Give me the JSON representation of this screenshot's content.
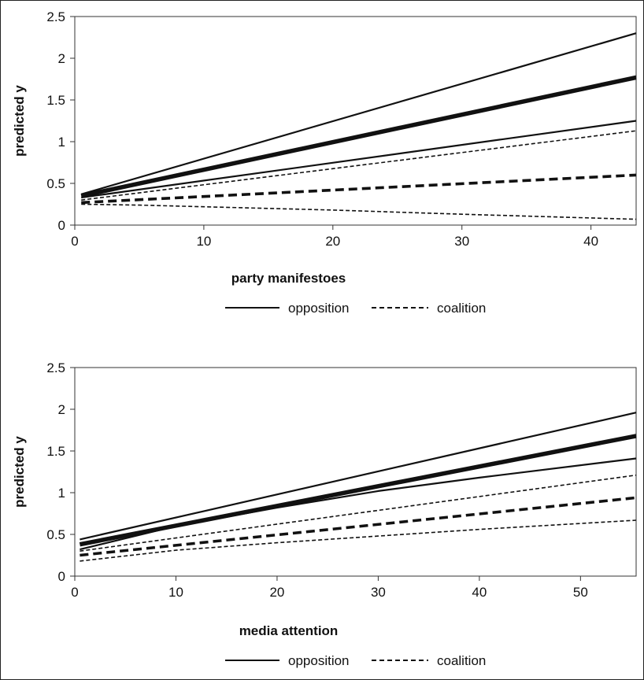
{
  "chart_data": [
    {
      "type": "line",
      "xlabel": "party manifestoes",
      "ylabel": "predicted y",
      "xlim": [
        0,
        43.5
      ],
      "ylim": [
        0,
        2.5
      ],
      "xticks": [
        0,
        10,
        20,
        30,
        40
      ],
      "xtick_labels": [
        "0",
        "10",
        "20",
        "30",
        "40"
      ],
      "yticks": [
        0,
        0.5,
        1,
        1.5,
        2,
        2.5
      ],
      "ytick_labels": [
        "0",
        "0.5",
        "1",
        "1.5",
        "2",
        "2.5"
      ],
      "legend": {
        "placement": "bottom",
        "entries": [
          "opposition",
          "coalition"
        ]
      },
      "series": [
        {
          "name": "opposition",
          "role": "estimate",
          "style": "solid",
          "x": [
            0.5,
            43.5
          ],
          "y": [
            0.35,
            1.77
          ]
        },
        {
          "name": "opposition",
          "role": "upper bound",
          "style": "solid",
          "x": [
            0.5,
            43.5
          ],
          "y": [
            0.37,
            2.3
          ]
        },
        {
          "name": "opposition",
          "role": "lower bound",
          "style": "solid",
          "x": [
            0.5,
            43.5
          ],
          "y": [
            0.33,
            1.25
          ]
        },
        {
          "name": "coalition",
          "role": "estimate",
          "style": "dashed",
          "x": [
            0.5,
            43.5
          ],
          "y": [
            0.27,
            0.6
          ]
        },
        {
          "name": "coalition",
          "role": "upper bound",
          "style": "dashed",
          "x": [
            0.5,
            43.5
          ],
          "y": [
            0.3,
            1.13
          ]
        },
        {
          "name": "coalition",
          "role": "lower bound",
          "style": "dashed",
          "x": [
            0.5,
            5,
            10,
            20,
            30,
            43.5
          ],
          "y": [
            0.25,
            0.24,
            0.22,
            0.18,
            0.13,
            0.07
          ]
        }
      ]
    },
    {
      "type": "line",
      "xlabel": "media attention",
      "ylabel": "predicted y",
      "xlim": [
        0,
        55.5
      ],
      "ylim": [
        0,
        2.5
      ],
      "xticks": [
        0,
        10,
        20,
        30,
        40,
        50
      ],
      "xtick_labels": [
        "0",
        "10",
        "20",
        "30",
        "40",
        "50"
      ],
      "yticks": [
        0,
        0.5,
        1,
        1.5,
        2,
        2.5
      ],
      "ytick_labels": [
        "0",
        "0.5",
        "1",
        "1.5",
        "2",
        "2.5"
      ],
      "legend": {
        "placement": "bottom",
        "entries": [
          "opposition",
          "coalition"
        ]
      },
      "series": [
        {
          "name": "opposition",
          "role": "estimate",
          "style": "solid",
          "x": [
            0.5,
            55.5
          ],
          "y": [
            0.38,
            1.68
          ]
        },
        {
          "name": "opposition",
          "role": "upper bound",
          "style": "solid",
          "x": [
            0.5,
            55.5
          ],
          "y": [
            0.44,
            1.96
          ]
        },
        {
          "name": "opposition",
          "role": "lower bound",
          "style": "solid",
          "x": [
            0.5,
            10,
            20,
            30,
            40,
            55.5
          ],
          "y": [
            0.32,
            0.6,
            0.82,
            1.02,
            1.18,
            1.41
          ]
        },
        {
          "name": "coalition",
          "role": "estimate",
          "style": "dashed",
          "x": [
            0.5,
            55.5
          ],
          "y": [
            0.25,
            0.94
          ]
        },
        {
          "name": "coalition",
          "role": "upper bound",
          "style": "dashed",
          "x": [
            0.5,
            55.5
          ],
          "y": [
            0.3,
            1.21
          ]
        },
        {
          "name": "coalition",
          "role": "lower bound",
          "style": "dashed",
          "x": [
            0.5,
            10,
            20,
            30,
            40,
            55.5
          ],
          "y": [
            0.18,
            0.31,
            0.4,
            0.48,
            0.56,
            0.67
          ]
        }
      ]
    }
  ]
}
